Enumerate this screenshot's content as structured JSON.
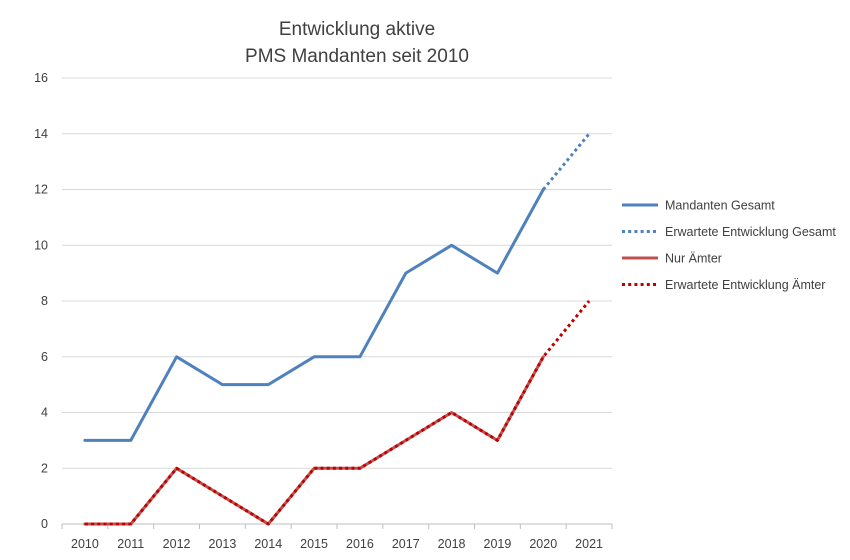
{
  "chart_data": {
    "type": "line",
    "title_lines": [
      "Entwicklung aktive",
      "PMS Mandanten seit 2010"
    ],
    "x": [
      "2010",
      "2011",
      "2012",
      "2013",
      "2014",
      "2015",
      "2016",
      "2017",
      "2018",
      "2019",
      "2020",
      "2021"
    ],
    "ylim": [
      0,
      16
    ],
    "yticks": [
      0,
      2,
      4,
      6,
      8,
      10,
      12,
      14,
      16
    ],
    "grid": true,
    "legend_position": "right",
    "series": [
      {
        "name": "Mandanten Gesamt",
        "style": "solid",
        "color": "#4f81bd",
        "values": [
          3,
          3,
          6,
          5,
          5,
          6,
          6,
          9,
          10,
          9,
          12,
          null
        ]
      },
      {
        "name": "Erwartete Entwicklung Gesamt",
        "style": "dotted",
        "color": "#4f81bd",
        "values": [
          null,
          null,
          null,
          null,
          null,
          null,
          null,
          null,
          null,
          null,
          12,
          14
        ]
      },
      {
        "name": "Nur Ämter",
        "style": "solid",
        "color": "#c0504d",
        "values": [
          0,
          0,
          2,
          1,
          0,
          2,
          2,
          3,
          4,
          3,
          6,
          null
        ]
      },
      {
        "name": "Erwartete Entwicklung Ämter",
        "style": "dotted",
        "color": "#c00000",
        "values": [
          0,
          0,
          2,
          1,
          0,
          2,
          2,
          3,
          4,
          3,
          6,
          8
        ]
      }
    ]
  }
}
